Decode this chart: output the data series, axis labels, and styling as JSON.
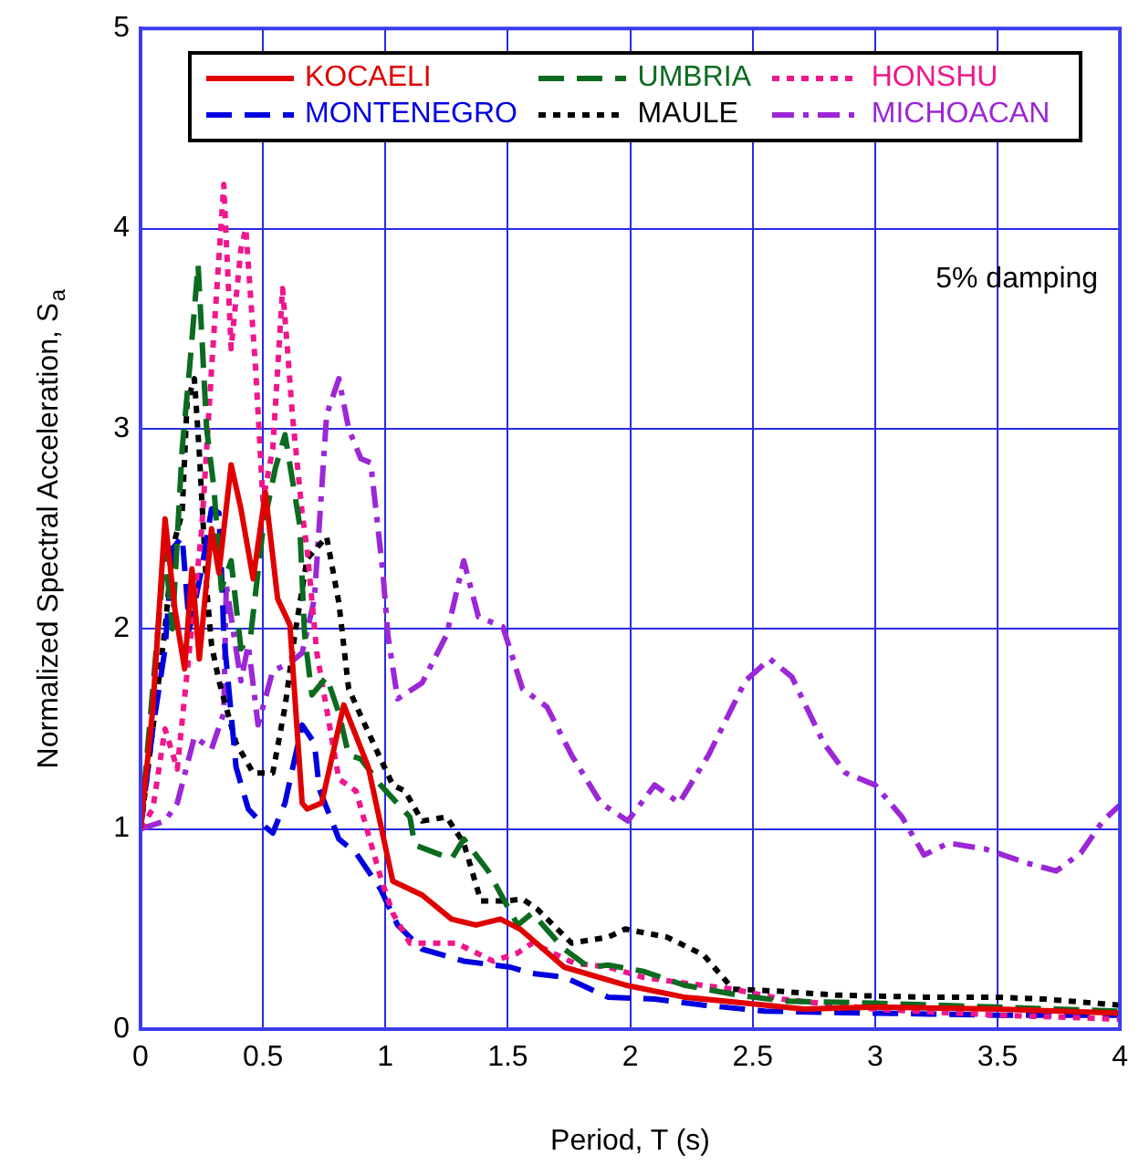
{
  "chart_data": {
    "type": "line",
    "xlabel": "Period, T (s)",
    "ylabel": "Normalized Spectral Acceleration, S$_{a}$",
    "annotations": [
      "5% damping"
    ],
    "xlim": [
      0,
      4
    ],
    "ylim": [
      0,
      5
    ],
    "xticks": [
      0,
      0.5,
      1,
      1.5,
      2,
      2.5,
      3,
      3.5,
      4
    ],
    "yticks": [
      0,
      1,
      2,
      3,
      4,
      5
    ],
    "grid": true,
    "legend": "top",
    "marker": "none",
    "series": [
      {
        "name": "KOCAELI",
        "color": "#e00000",
        "line_style": "solid",
        "x": [
          0,
          0.05,
          0.1,
          0.14,
          0.18,
          0.21,
          0.24,
          0.29,
          0.32,
          0.37,
          0.41,
          0.46,
          0.51,
          0.56,
          0.61,
          0.66,
          0.68,
          0.74,
          0.83,
          0.93,
          1.03,
          1.15,
          1.27,
          1.37,
          1.47,
          1.55,
          1.73,
          1.98,
          2.22,
          2.47,
          2.71,
          3,
          3.5,
          4
        ],
        "values": [
          1,
          1.6,
          2.55,
          2.1,
          1.8,
          2.3,
          1.85,
          2.5,
          2.28,
          2.82,
          2.6,
          2.25,
          2.68,
          2.15,
          2.02,
          1.13,
          1.1,
          1.13,
          1.62,
          1.31,
          0.74,
          0.67,
          0.55,
          0.52,
          0.55,
          0.5,
          0.31,
          0.22,
          0.16,
          0.13,
          0.1,
          0.11,
          0.1,
          0.08
        ]
      },
      {
        "name": "UMBRIA",
        "color": "#0b6b1f",
        "line_style": "dashed",
        "x": [
          0,
          0.05,
          0.1,
          0.13,
          0.17,
          0.2,
          0.235,
          0.27,
          0.3,
          0.33,
          0.37,
          0.41,
          0.45,
          0.5,
          0.55,
          0.59,
          0.65,
          0.67,
          0.7,
          0.76,
          0.81,
          0.85,
          0.9,
          0.98,
          1.1,
          1.12,
          1.27,
          1.32,
          1.42,
          1.54,
          1.6,
          1.73,
          1.83,
          1.91,
          2.05,
          2.22,
          2.44,
          2.63,
          3,
          3.5,
          4
        ],
        "values": [
          1,
          1.7,
          2.4,
          2,
          2.9,
          3.3,
          3.82,
          3,
          2.7,
          2.2,
          2.34,
          1.9,
          1.97,
          2.5,
          2.8,
          2.97,
          2.52,
          1.97,
          1.67,
          1.76,
          1.58,
          1.37,
          1.35,
          1.22,
          1.06,
          0.92,
          0.85,
          0.95,
          0.79,
          0.52,
          0.58,
          0.4,
          0.31,
          0.32,
          0.29,
          0.22,
          0.17,
          0.14,
          0.13,
          0.11,
          0.09
        ]
      },
      {
        "name": "HONSHU",
        "color": "#f0168c",
        "line_style": "dotted",
        "x": [
          0,
          0.05,
          0.1,
          0.15,
          0.2,
          0.25,
          0.29,
          0.34,
          0.37,
          0.41,
          0.43,
          0.47,
          0.5,
          0.54,
          0.58,
          0.6,
          0.62,
          0.66,
          0.68,
          0.72,
          0.76,
          0.81,
          0.88,
          0.98,
          1.03,
          1.1,
          1.29,
          1.44,
          1.54,
          1.6,
          1.77,
          1.91,
          2.05,
          2.22,
          2.42,
          2.62,
          3,
          3.5,
          4
        ],
        "values": [
          1,
          1.1,
          1.5,
          1.3,
          1.9,
          2.5,
          3.3,
          4.22,
          3.4,
          3.9,
          4,
          3.3,
          2.64,
          2.9,
          3.7,
          3.4,
          3.07,
          2.58,
          2.4,
          1.88,
          1.6,
          1.25,
          1.19,
          0.76,
          0.58,
          0.43,
          0.43,
          0.34,
          0.38,
          0.43,
          0.33,
          0.31,
          0.26,
          0.23,
          0.2,
          0.15,
          0.1,
          0.07,
          0.05
        ]
      },
      {
        "name": "MONTENEGRO",
        "color": "#0000e0",
        "line_style": "dashed",
        "x": [
          0,
          0.05,
          0.1,
          0.13,
          0.17,
          0.2,
          0.25,
          0.29,
          0.32,
          0.33,
          0.34,
          0.39,
          0.44,
          0.51,
          0.54,
          0.59,
          0.66,
          0.71,
          0.73,
          0.81,
          0.88,
          0.98,
          1.05,
          1.15,
          1.32,
          1.51,
          1.59,
          1.73,
          1.91,
          2.1,
          2.3,
          2.55,
          3,
          3.5,
          4
        ],
        "values": [
          1,
          1.5,
          1.9,
          2.4,
          2.46,
          2,
          2.3,
          2.6,
          2.58,
          2.31,
          1.97,
          1.31,
          1.1,
          1.01,
          0.98,
          1.13,
          1.52,
          1.43,
          1.2,
          0.95,
          0.88,
          0.7,
          0.52,
          0.4,
          0.34,
          0.31,
          0.28,
          0.26,
          0.16,
          0.15,
          0.12,
          0.09,
          0.08,
          0.07,
          0.07
        ]
      },
      {
        "name": "MAULE",
        "color": "#000000",
        "line_style": "dotted",
        "x": [
          0,
          0.05,
          0.1,
          0.13,
          0.17,
          0.19,
          0.22,
          0.24,
          0.27,
          0.29,
          0.32,
          0.39,
          0.46,
          0.54,
          0.59,
          0.63,
          0.68,
          0.76,
          0.81,
          0.85,
          0.95,
          1.03,
          1.08,
          1.15,
          1.25,
          1.32,
          1.39,
          1.49,
          1.56,
          1.62,
          1.76,
          1.91,
          1.98,
          2.15,
          2.3,
          2.42,
          2.6,
          2.84,
          3.2,
          3.49,
          3.69,
          4
        ],
        "values": [
          1,
          1.5,
          2,
          2.4,
          2.58,
          3.13,
          3.25,
          2.88,
          2.2,
          1.92,
          1.74,
          1.43,
          1.28,
          1.28,
          1.61,
          1.97,
          2.35,
          2.46,
          2.13,
          1.7,
          1.43,
          1.22,
          1.19,
          1.04,
          1.06,
          0.93,
          0.64,
          0.64,
          0.65,
          0.6,
          0.43,
          0.46,
          0.5,
          0.46,
          0.37,
          0.2,
          0.19,
          0.17,
          0.16,
          0.16,
          0.15,
          0.12
        ]
      },
      {
        "name": "MICHOACAN",
        "color": "#9b27d6",
        "line_style": "dashdot",
        "x": [
          0,
          0.1,
          0.15,
          0.22,
          0.29,
          0.34,
          0.35,
          0.41,
          0.44,
          0.48,
          0.54,
          0.61,
          0.66,
          0.71,
          0.73,
          0.76,
          0.81,
          0.85,
          0.9,
          0.94,
          0.96,
          0.99,
          1.01,
          1.05,
          1.15,
          1.25,
          1.32,
          1.38,
          1.48,
          1.56,
          1.66,
          1.76,
          1.88,
          1.99,
          2.1,
          2.2,
          2.32,
          2.47,
          2.57,
          2.66,
          2.79,
          2.88,
          3,
          3.11,
          3.2,
          3.3,
          3.45,
          3.62,
          3.74,
          3.84,
          3.93,
          4
        ],
        "values": [
          1,
          1.04,
          1.13,
          1.46,
          1.4,
          1.58,
          2.22,
          1.74,
          1.92,
          1.52,
          1.79,
          1.83,
          1.88,
          2.15,
          2.52,
          3.07,
          3.25,
          3,
          2.85,
          2.83,
          2.61,
          2.28,
          1.97,
          1.65,
          1.73,
          1.97,
          2.34,
          2.06,
          2.01,
          1.7,
          1.61,
          1.37,
          1.13,
          1.04,
          1.22,
          1.13,
          1.37,
          1.74,
          1.85,
          1.76,
          1.43,
          1.28,
          1.22,
          1.06,
          0.87,
          0.93,
          0.9,
          0.83,
          0.79,
          0.88,
          1.04,
          1.12
        ]
      }
    ]
  }
}
